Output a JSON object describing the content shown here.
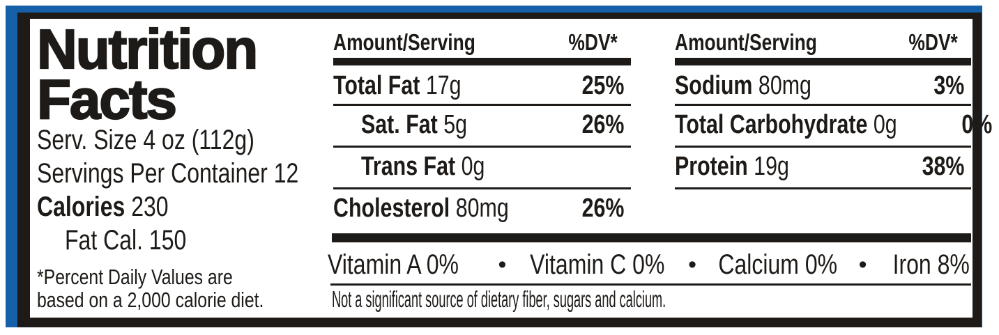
{
  "nutrition_label": {
    "title": {
      "line1": "Nutrition",
      "line2": "Facts"
    },
    "serving_info": {
      "serving_size": "Serv. Size 4 oz (112g)",
      "servings_per_container": "Servings Per Container 12",
      "calories_label": "Calories",
      "calories_value": "230",
      "fat_calories": "Fat Cal. 150"
    },
    "footnote": {
      "line1": "*Percent Daily Values are",
      "line2": "based on a 2,000 calorie diet."
    },
    "table": {
      "header": {
        "amount": "Amount/Serving",
        "dv": "%DV*"
      },
      "left_column": [
        {
          "name": "Total Fat",
          "amount": "17g",
          "dv": "25%"
        },
        {
          "name": "Sat. Fat",
          "amount": "5g",
          "dv": "26%"
        },
        {
          "name": "Trans Fat",
          "amount": "0g",
          "dv": ""
        },
        {
          "name": "Cholesterol",
          "amount": "80mg",
          "dv": "26%"
        }
      ],
      "right_column": [
        {
          "name": "Sodium",
          "amount": "80mg",
          "dv": "3%"
        },
        {
          "name": "Total Carbohydrate",
          "amount": "0g",
          "dv": "0%"
        },
        {
          "name": "Protein",
          "amount": "19g",
          "dv": "38%"
        }
      ]
    },
    "micronutrients": {
      "separator": "•",
      "items": [
        {
          "name": "Vitamin A",
          "value": "0%"
        },
        {
          "name": "Vitamin C",
          "value": "0%"
        },
        {
          "name": "Calcium",
          "value": "0%"
        },
        {
          "name": "Iron",
          "value": "8%"
        }
      ]
    },
    "disclaimer": "Not a significant source of dietary fiber, sugars and calcium.",
    "colors": {
      "package_blue": "#1560a8",
      "ink": "#1d1a17",
      "paper": "#ffffff"
    }
  }
}
